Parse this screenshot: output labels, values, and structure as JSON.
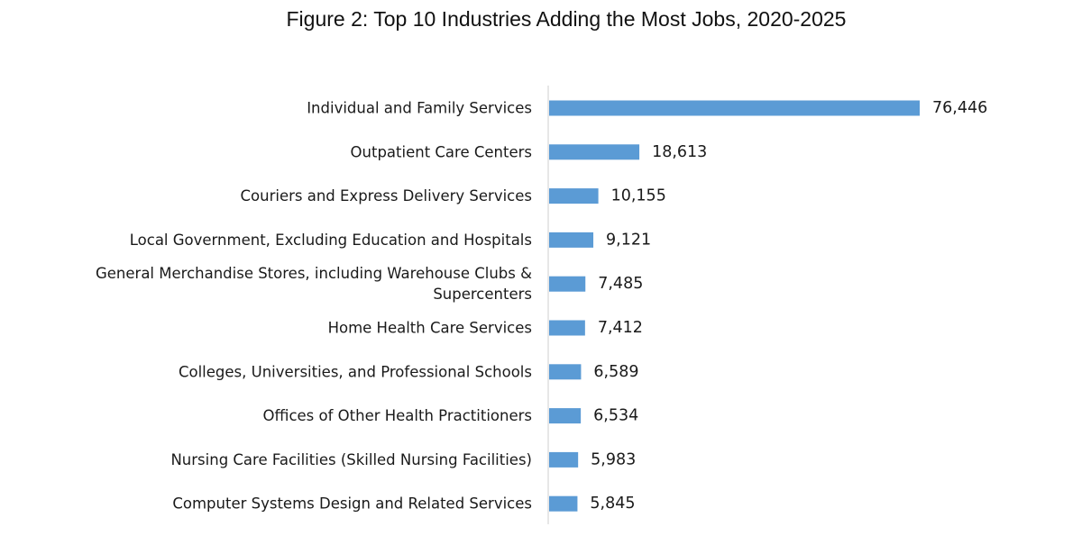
{
  "chart_data": {
    "type": "bar",
    "orientation": "horizontal",
    "title": "Figure 2: Top 10 Industries Adding the Most Jobs, 2020-2025",
    "categories": [
      [
        "Individual and Family Services"
      ],
      [
        "Outpatient Care Centers"
      ],
      [
        "Couriers and Express Delivery Services"
      ],
      [
        "Local Government, Excluding Education and Hospitals"
      ],
      [
        "General Merchandise Stores, including Warehouse Clubs &",
        "Supercenters"
      ],
      [
        "Home Health Care Services"
      ],
      [
        "Colleges, Universities, and Professional Schools"
      ],
      [
        "Offices of Other Health Practitioners"
      ],
      [
        "Nursing Care Facilities (Skilled Nursing Facilities)"
      ],
      [
        "Computer Systems Design and Related Services"
      ]
    ],
    "values": [
      76446,
      18613,
      10155,
      9121,
      7485,
      7412,
      6589,
      6534,
      5983,
      5845
    ],
    "value_labels": [
      "76,446",
      "18,613",
      "10,155",
      "9,121",
      "7,485",
      "7,412",
      "6,589",
      "6,534",
      "5,983",
      "5,845"
    ],
    "xlim": [
      0,
      76446
    ],
    "xlabel": "",
    "ylabel": "",
    "grid": false,
    "legend": "none",
    "bar_color": "#5b9bd5"
  }
}
